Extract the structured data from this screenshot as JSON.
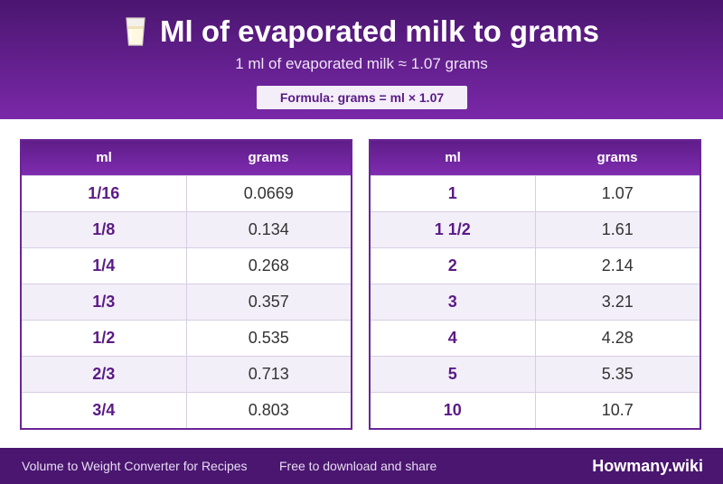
{
  "header": {
    "icon": "milk-glass-icon",
    "title": "Ml of evaporated milk to grams",
    "subtitle": "1 ml of evaporated milk ≈ 1.07 grams",
    "formula": "Formula: grams = ml × 1.07"
  },
  "tables": [
    {
      "headers": {
        "ml": "ml",
        "grams": "grams"
      },
      "rows": [
        {
          "ml": "1/16",
          "grams": "0.0669"
        },
        {
          "ml": "1/8",
          "grams": "0.134"
        },
        {
          "ml": "1/4",
          "grams": "0.268"
        },
        {
          "ml": "1/3",
          "grams": "0.357"
        },
        {
          "ml": "1/2",
          "grams": "0.535"
        },
        {
          "ml": "2/3",
          "grams": "0.713"
        },
        {
          "ml": "3/4",
          "grams": "0.803"
        }
      ]
    },
    {
      "headers": {
        "ml": "ml",
        "grams": "grams"
      },
      "rows": [
        {
          "ml": "1",
          "grams": "1.07"
        },
        {
          "ml": "1 1/2",
          "grams": "1.61"
        },
        {
          "ml": "2",
          "grams": "2.14"
        },
        {
          "ml": "3",
          "grams": "3.21"
        },
        {
          "ml": "4",
          "grams": "4.28"
        },
        {
          "ml": "5",
          "grams": "5.35"
        },
        {
          "ml": "10",
          "grams": "10.7"
        }
      ]
    }
  ],
  "footer": {
    "left": "Volume to Weight Converter for Recipes",
    "middle": "Free to download and share",
    "brand": "Howmany.wiki"
  },
  "colors": {
    "header_dark": "#4a1670",
    "header_light": "#7a28a8",
    "accent_text": "#5a1a86",
    "row_alt": "#f3eff9"
  }
}
